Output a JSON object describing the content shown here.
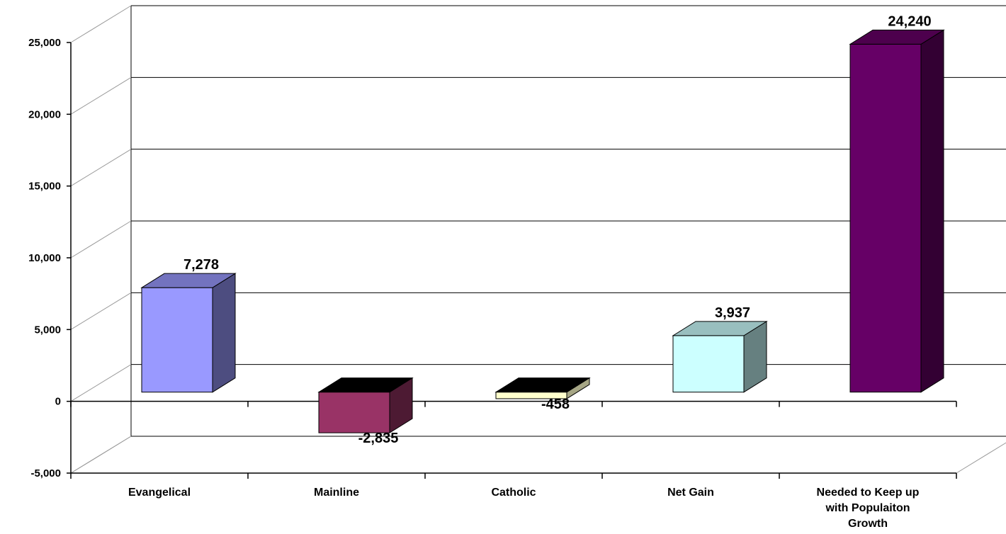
{
  "chart_data": {
    "type": "bar",
    "style": "3d-column",
    "title": "",
    "xlabel": "",
    "ylabel": "",
    "categories": [
      "Evangelical",
      "Mainline",
      "Catholic",
      "Net  Gain",
      "Needed to Keep up with Populaiton Growth"
    ],
    "category_label_lines": [
      [
        "Evangelical"
      ],
      [
        "Mainline"
      ],
      [
        "Catholic"
      ],
      [
        "Net  Gain"
      ],
      [
        "Needed to Keep up",
        "with Populaiton",
        "Growth"
      ]
    ],
    "values": [
      7278,
      -2835,
      -458,
      3937,
      24240
    ],
    "data_labels": [
      "7,278",
      "-2,835",
      "-458",
      "3,937",
      "24,240"
    ],
    "colors": [
      {
        "front": "#9999ff",
        "side": "#4d4d80",
        "top": "#7373bf"
      },
      {
        "front": "#993366",
        "side": "#4d1a33",
        "top": "#000000"
      },
      {
        "front": "#ffffcc",
        "side": "#a6a685",
        "top": "#000000"
      },
      {
        "front": "#ccffff",
        "side": "#668080",
        "top": "#99bfbf"
      },
      {
        "front": "#660066",
        "side": "#330033",
        "top": "#4d004d"
      }
    ],
    "ylim": [
      -5000,
      25000
    ],
    "yticks": [
      25000,
      20000,
      15000,
      10000,
      5000,
      0,
      -5000
    ],
    "ytick_labels": [
      "25,000",
      "20,000",
      "15,000",
      "10,000",
      "5,000",
      "0",
      "-5,000"
    ],
    "grid": true,
    "legend": "none"
  }
}
